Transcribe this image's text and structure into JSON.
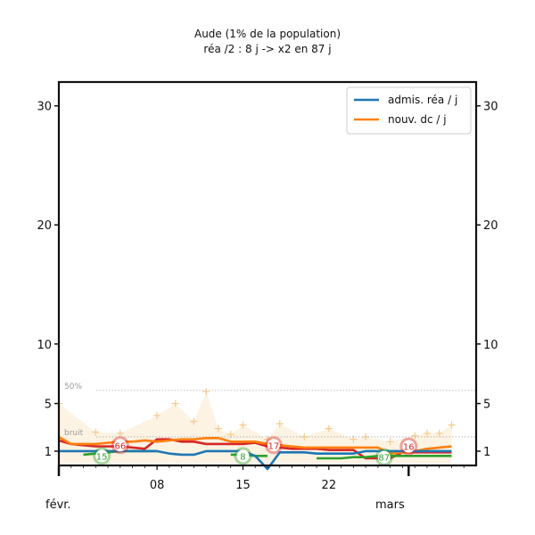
{
  "chart_data": {
    "type": "line",
    "title": "Aude (1% de la population)",
    "subtitle": "réa /2 : 8 j -> x2 en 87 j",
    "yticks": [
      1,
      5,
      10,
      20,
      30
    ],
    "ylim": [
      0,
      32
    ],
    "xticks": [
      "08",
      "15",
      "22"
    ],
    "month_labels": [
      "févr.",
      "mars"
    ],
    "x_range": [
      0,
      34
    ],
    "grid": false,
    "legend": {
      "position": "top-right",
      "entries": [
        {
          "label": "admis. réa / j",
          "color": "#1f77b4"
        },
        {
          "label": "nouv. dc / j",
          "color": "#ff7f0e"
        }
      ]
    },
    "reference_lines": [
      {
        "label": "50%",
        "y": 6.1
      },
      {
        "label": "bruit",
        "y": 2.2
      }
    ],
    "series": [
      {
        "color": "#d62728",
        "x": [
          0,
          1,
          2,
          3,
          4,
          5,
          6,
          7,
          8,
          9,
          10,
          11,
          12,
          13,
          14,
          15,
          16,
          17,
          18,
          19,
          20,
          21,
          22,
          23,
          24,
          25,
          26,
          27,
          28,
          29,
          30,
          31,
          32
        ],
        "y": [
          1.9,
          1.6,
          1.5,
          1.4,
          1.4,
          1.4,
          1.3,
          1.2,
          2.0,
          2.0,
          1.8,
          1.8,
          1.6,
          1.6,
          1.6,
          1.6,
          1.7,
          1.4,
          1.3,
          1.2,
          1.2,
          1.2,
          1.1,
          1.1,
          1.1,
          0.4,
          0.4,
          0.4,
          0.9,
          0.9,
          0.9,
          0.9,
          0.9
        ]
      },
      {
        "color": "#ff7f0e",
        "x": [
          0,
          1,
          2,
          3,
          4,
          5,
          6,
          7,
          8,
          9,
          10,
          11,
          12,
          13,
          14,
          15,
          16,
          17,
          18,
          19,
          20,
          21,
          22,
          23,
          24,
          25,
          26,
          27,
          28,
          29,
          30,
          31,
          32
        ],
        "y": [
          2.2,
          1.6,
          1.6,
          1.6,
          1.7,
          1.8,
          1.8,
          1.9,
          1.8,
          1.9,
          2.0,
          2.0,
          2.1,
          2.1,
          1.8,
          1.8,
          1.8,
          1.6,
          1.5,
          1.4,
          1.3,
          1.3,
          1.3,
          1.3,
          1.3,
          1.3,
          1.3,
          0.8,
          0.9,
          1.0,
          1.2,
          1.3,
          1.4
        ]
      },
      {
        "color": "#2ca02c",
        "x": [
          0,
          1,
          2,
          3,
          4,
          5,
          6,
          7,
          8,
          9,
          10,
          11,
          12,
          13,
          14,
          15,
          16,
          17,
          18,
          19,
          20,
          21,
          22,
          23,
          24,
          25,
          26,
          27,
          28,
          29,
          30,
          31,
          32
        ],
        "y": [
          null,
          null,
          0.7,
          0.8,
          0.9,
          1.0,
          1.0,
          1.0,
          1.0,
          null,
          null,
          null,
          null,
          null,
          0.7,
          0.7,
          0.6,
          0.6,
          null,
          null,
          null,
          0.4,
          0.4,
          0.4,
          0.5,
          0.5,
          0.6,
          0.6,
          0.6,
          0.6,
          0.6,
          0.6,
          0.6
        ]
      },
      {
        "color": "#1f77b4",
        "x": [
          0,
          1,
          2,
          3,
          4,
          5,
          6,
          7,
          8,
          9,
          10,
          11,
          12,
          13,
          14,
          15,
          16,
          17,
          18,
          19,
          20,
          21,
          22,
          23,
          24,
          25,
          26,
          27,
          28,
          29,
          30,
          31,
          32
        ],
        "y": [
          1.0,
          1.0,
          1.0,
          1.0,
          1.0,
          1.0,
          1.0,
          1.0,
          1.0,
          0.8,
          0.7,
          0.7,
          1.0,
          1.0,
          1.0,
          1.0,
          0.6,
          -0.5,
          0.9,
          0.9,
          0.9,
          0.8,
          0.8,
          0.8,
          0.8,
          1.0,
          1.0,
          1.0,
          1.0,
          1.0,
          1.0,
          1.0,
          1.0
        ]
      }
    ],
    "background_points": [
      {
        "x": 0,
        "y": 5.0
      },
      {
        "x": 3,
        "y": 2.6
      },
      {
        "x": 5,
        "y": 2.5
      },
      {
        "x": 8,
        "y": 4.0
      },
      {
        "x": 9.5,
        "y": 5.0
      },
      {
        "x": 11,
        "y": 3.5
      },
      {
        "x": 12,
        "y": 6.0
      },
      {
        "x": 13,
        "y": 2.9
      },
      {
        "x": 14,
        "y": 2.4
      },
      {
        "x": 15,
        "y": 3.2
      },
      {
        "x": 17,
        "y": 2.0
      },
      {
        "x": 18,
        "y": 3.3
      },
      {
        "x": 20,
        "y": 2.2
      },
      {
        "x": 22,
        "y": 2.9
      },
      {
        "x": 24,
        "y": 2.0
      },
      {
        "x": 25,
        "y": 2.2
      },
      {
        "x": 27,
        "y": 1.8
      },
      {
        "x": 29,
        "y": 2.3
      },
      {
        "x": 30,
        "y": 2.5
      },
      {
        "x": 31,
        "y": 2.5
      },
      {
        "x": 32,
        "y": 3.2
      }
    ],
    "annotations": [
      {
        "text": "15",
        "x": 3.5,
        "y": 0.6,
        "color": "#2ca02c"
      },
      {
        "text": "66",
        "x": 5.0,
        "y": 1.5,
        "color": "#d62728"
      },
      {
        "text": "8",
        "x": 15.0,
        "y": 0.6,
        "color": "#2ca02c"
      },
      {
        "text": "17",
        "x": 17.5,
        "y": 1.5,
        "color": "#d62728"
      },
      {
        "text": "87",
        "x": 26.5,
        "y": 0.5,
        "color": "#2ca02c"
      },
      {
        "text": "16",
        "x": 28.5,
        "y": 1.4,
        "color": "#d62728"
      }
    ]
  }
}
